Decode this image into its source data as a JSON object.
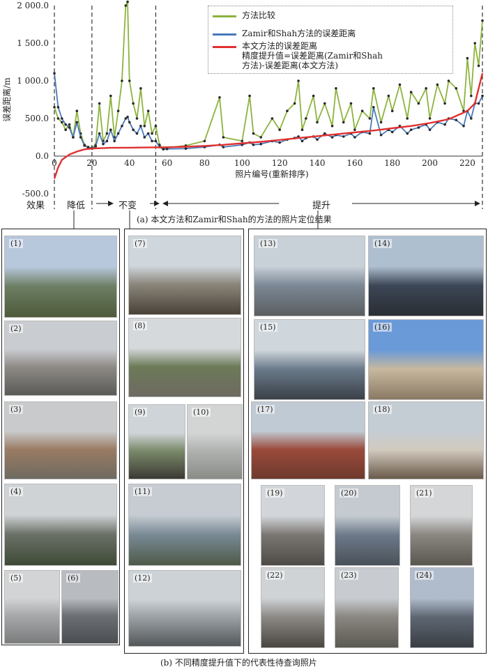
{
  "chart_data": {
    "type": "line",
    "ylabel": "误差距离/m",
    "xlabel": "照片编号(重新排序)",
    "xlim": [
      0,
      228
    ],
    "ylim": [
      -500,
      2000
    ],
    "y_tick_labels": [
      "2 000.0",
      "1 500.0",
      "1 000.0",
      "500.0",
      "0.0",
      "-500.0"
    ],
    "x_tick_labels": [
      "0",
      "20",
      "40",
      "60",
      "80",
      "100",
      "120",
      "140",
      "160",
      "180",
      "200",
      "220"
    ],
    "series": [
      {
        "name": "方法比较",
        "color": "#8db33f",
        "x": [
          0,
          2,
          4,
          6,
          8,
          10,
          12,
          14,
          16,
          18,
          20,
          22,
          24,
          26,
          28,
          30,
          32,
          34,
          36,
          38,
          39,
          40,
          42,
          44,
          46,
          48,
          50,
          52,
          54,
          56,
          58,
          60,
          70,
          80,
          88,
          90,
          100,
          104,
          106,
          110,
          116,
          120,
          124,
          128,
          130,
          132,
          134,
          138,
          140,
          144,
          148,
          150,
          154,
          158,
          160,
          164,
          168,
          170,
          174,
          178,
          180,
          184,
          188,
          190,
          194,
          198,
          200,
          204,
          208,
          210,
          214,
          218,
          220,
          222,
          224,
          226,
          228
        ],
        "values": [
          650,
          500,
          450,
          350,
          420,
          250,
          600,
          300,
          150,
          120,
          110,
          150,
          700,
          200,
          300,
          800,
          250,
          600,
          1000,
          2000,
          2050,
          1000,
          700,
          500,
          900,
          400,
          600,
          300,
          400,
          150,
          100,
          110,
          140,
          200,
          780,
          250,
          200,
          800,
          300,
          250,
          500,
          350,
          600,
          700,
          1000,
          350,
          500,
          800,
          450,
          700,
          400,
          900,
          450,
          700,
          350,
          600,
          500,
          900,
          450,
          800,
          600,
          950,
          500,
          850,
          700,
          900,
          500,
          950,
          700,
          1000,
          900,
          600,
          1300,
          800,
          1500,
          1200,
          1800
        ]
      },
      {
        "name": "Zamir和Shah方法的误差距离",
        "color": "#4a78b8",
        "x": [
          0,
          2,
          4,
          6,
          8,
          10,
          12,
          14,
          16,
          18,
          20,
          22,
          24,
          26,
          28,
          30,
          32,
          34,
          36,
          38,
          39,
          40,
          42,
          44,
          46,
          48,
          50,
          52,
          54,
          56,
          58,
          60,
          70,
          80,
          88,
          90,
          100,
          104,
          106,
          110,
          116,
          120,
          124,
          128,
          130,
          132,
          134,
          138,
          140,
          144,
          148,
          150,
          154,
          158,
          160,
          164,
          168,
          170,
          174,
          178,
          180,
          184,
          188,
          190,
          194,
          198,
          200,
          204,
          208,
          210,
          214,
          218,
          220,
          222,
          224,
          226,
          228
        ],
        "values": [
          1100,
          650,
          500,
          420,
          380,
          250,
          450,
          250,
          140,
          110,
          100,
          130,
          300,
          160,
          200,
          350,
          200,
          300,
          400,
          500,
          520,
          450,
          350,
          300,
          400,
          250,
          300,
          200,
          200,
          120,
          90,
          95,
          100,
          120,
          150,
          120,
          150,
          180,
          150,
          160,
          200,
          180,
          220,
          240,
          260,
          200,
          240,
          260,
          220,
          300,
          250,
          280,
          260,
          300,
          250,
          320,
          300,
          650,
          280,
          350,
          320,
          400,
          300,
          350,
          380,
          420,
          350,
          450,
          420,
          500,
          480,
          400,
          600,
          500,
          700,
          700,
          800
        ]
      },
      {
        "name": "本文方法的误差距离",
        "color": "#e03030",
        "x": [
          0,
          2,
          4,
          8,
          12,
          16,
          20,
          24,
          30,
          40,
          50,
          60,
          70,
          80,
          90,
          100,
          110,
          120,
          130,
          140,
          150,
          160,
          170,
          180,
          190,
          200,
          210,
          220,
          224,
          228
        ],
        "values": [
          -300,
          -150,
          -50,
          20,
          60,
          90,
          100,
          105,
          110,
          112,
          115,
          118,
          125,
          135,
          150,
          170,
          190,
          215,
          240,
          265,
          290,
          315,
          340,
          370,
          400,
          440,
          490,
          600,
          700,
          1100
        ]
      }
    ],
    "legend_extra": [
      "精度提升值=误差距离(Zamir和Shah",
      "方法)-误差距离(本文方法)"
    ],
    "legend_position": "top-right"
  },
  "effect_labels": {
    "row_label": "效果",
    "decrease": "降低",
    "unchanged": "不变",
    "improve": "提升"
  },
  "captions": {
    "a": "(a) 本文方法和Zamir和Shah的方法的照片定位结果",
    "b": "(b) 不同精度提升值下的代表性待查询照片"
  },
  "photos": {
    "decrease": [
      {
        "num": "(1)",
        "colors": [
          "#b7c7dc",
          "#6c7e63",
          "#4e5a3a"
        ]
      },
      {
        "num": "(2)",
        "colors": [
          "#c9ccd0",
          "#8e8a86",
          "#5a5a56"
        ]
      },
      {
        "num": "(3)",
        "colors": [
          "#c8cacc",
          "#9a7b63",
          "#6e6a60"
        ]
      },
      {
        "num": "(4)",
        "colors": [
          "#cfd3d6",
          "#6a7066",
          "#3e4a36"
        ]
      },
      {
        "num": "(5)",
        "colors": [
          "#d2d4d6",
          "#a6a8aa",
          "#7a7c7c"
        ]
      },
      {
        "num": "(6)",
        "colors": [
          "#b8bcc0",
          "#6c7074",
          "#4a4e52"
        ]
      }
    ],
    "unchanged": [
      {
        "num": "(7)",
        "colors": [
          "#cfd6dc",
          "#8a857a",
          "#4a4238"
        ]
      },
      {
        "num": "(8)",
        "colors": [
          "#d6d9dc",
          "#6c7a58",
          "#6e6a62"
        ]
      },
      {
        "num": "(9)",
        "colors": [
          "#cfd4d8",
          "#7a8a6a",
          "#3c3a34"
        ]
      },
      {
        "num": "(10)",
        "colors": [
          "#d3d4d4",
          "#b0b2b0",
          "#8a8c88"
        ]
      },
      {
        "num": "(11)",
        "colors": [
          "#c6ccd2",
          "#7a8a96",
          "#4e5a48"
        ]
      },
      {
        "num": "(12)",
        "colors": [
          "#cdd2d6",
          "#9aa0a4",
          "#54585a"
        ]
      }
    ],
    "improve": [
      {
        "num": "(13)",
        "colors": [
          "#c8d0d8",
          "#7c8896",
          "#5a5e60"
        ]
      },
      {
        "num": "(14)",
        "colors": [
          "#aebfd0",
          "#3c4656",
          "#2a2e34"
        ]
      },
      {
        "num": "(15)",
        "colors": [
          "#cfd6dc",
          "#6a7a8a",
          "#3a4048"
        ]
      },
      {
        "num": "(16)",
        "colors": [
          "#6a9ad8",
          "#c8b8a0",
          "#8a7a64"
        ]
      },
      {
        "num": "(17)",
        "colors": [
          "#c0cad4",
          "#9a4a3a",
          "#6e3a2e"
        ]
      },
      {
        "num": "(18)",
        "colors": [
          "#c4ccd4",
          "#d2cabe",
          "#6a5a4a"
        ]
      },
      {
        "num": "(19)",
        "colors": [
          "#d2d6da",
          "#7a7672",
          "#4e4a46"
        ]
      },
      {
        "num": "(20)",
        "colors": [
          "#c4cad0",
          "#6c7a8a",
          "#4a5058"
        ]
      },
      {
        "num": "(21)",
        "colors": [
          "#d4d6d8",
          "#8a8680",
          "#5a5650"
        ]
      },
      {
        "num": "(22)",
        "colors": [
          "#cfd3d6",
          "#8c8884",
          "#4a4642"
        ]
      },
      {
        "num": "(23)",
        "colors": [
          "#c8ccd0",
          "#8a8580",
          "#5a5a52"
        ]
      },
      {
        "num": "(24)",
        "colors": [
          "#b0bccc",
          "#5e6672",
          "#3a3e44"
        ]
      }
    ]
  }
}
